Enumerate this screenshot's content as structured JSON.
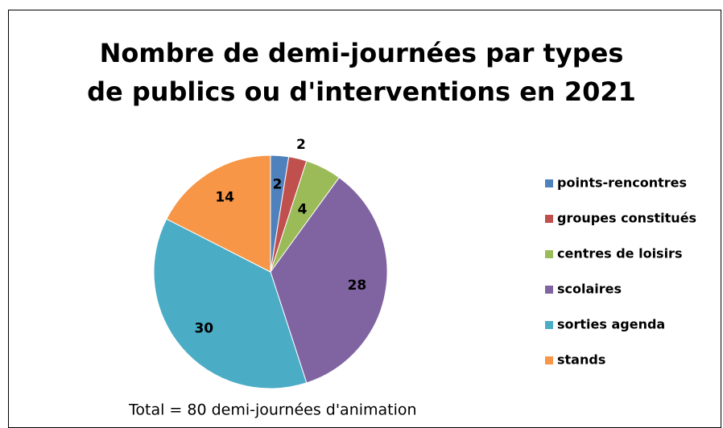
{
  "chart_data": {
    "type": "pie",
    "title": "Nombre de demi-journées par types\nde publics ou d'interventions en 2021",
    "categories": [
      "points-rencontres",
      "groupes constitués",
      "centres de loisirs",
      "scolaires",
      "sorties agenda",
      "stands"
    ],
    "values": [
      2,
      2,
      4,
      28,
      30,
      14
    ],
    "colors": [
      "#4f81bd",
      "#c0504d",
      "#9bbb59",
      "#8064a2",
      "#4bacc6",
      "#f79646"
    ],
    "legend": "right",
    "annotation": "Total = 80 demi-journées  d'animation"
  }
}
